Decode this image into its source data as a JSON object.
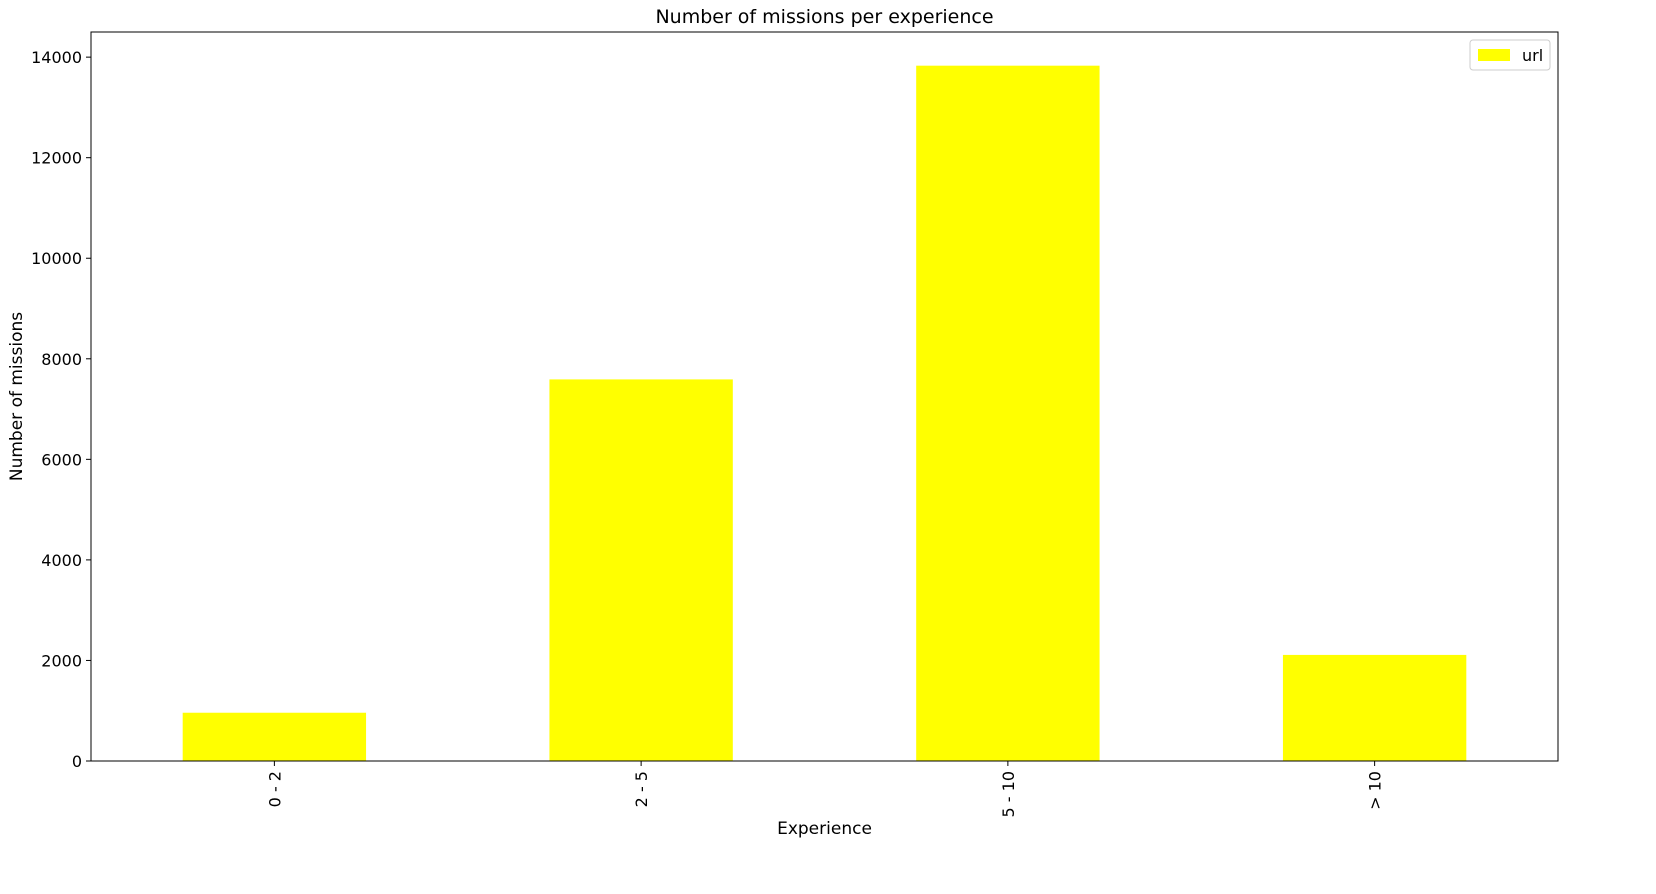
{
  "chart_data": {
    "type": "bar",
    "title": "Number of missions per experience",
    "xlabel": "Experience",
    "ylabel": "Number of missions",
    "categories": [
      "0 - 2",
      "2 - 5",
      "5 - 10",
      "> 10"
    ],
    "series": [
      {
        "name": "url",
        "color": "#ffff00",
        "values": [
          960,
          7590,
          13830,
          2110
        ]
      }
    ],
    "ylim": [
      0,
      14500
    ],
    "yticks": [
      0,
      2000,
      4000,
      6000,
      8000,
      10000,
      12000,
      14000
    ],
    "ytick_labels": [
      "0",
      "2000",
      "4000",
      "6000",
      "8000",
      "10000",
      "12000",
      "14000"
    ],
    "xtick_rotation": "vertical",
    "grid": false,
    "legend_position": "top-right"
  }
}
